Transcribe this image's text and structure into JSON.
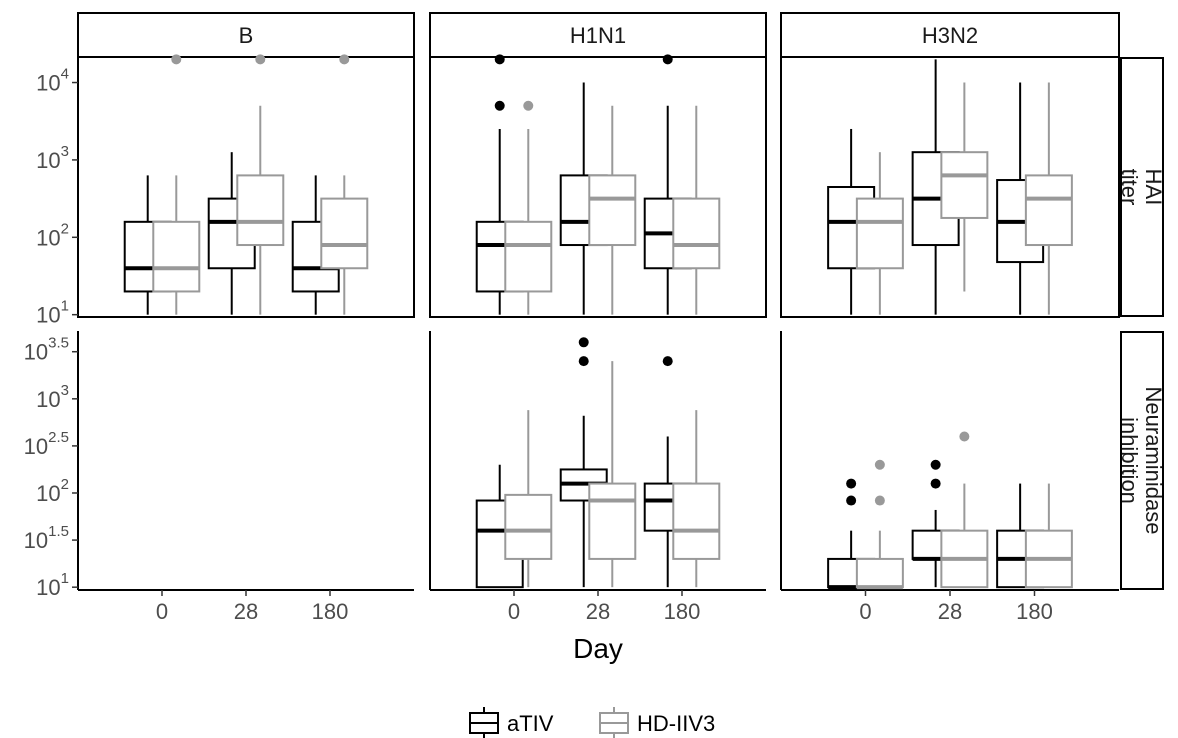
{
  "colors": {
    "aTIV": "#000000",
    "HD-IIV3": "#999999"
  },
  "chart_data": {
    "type": "boxplot",
    "xlabel": "Day",
    "x_categories": [
      "0",
      "28",
      "180"
    ],
    "panel_columns": [
      "B",
      "H1N1",
      "H3N2"
    ],
    "panel_rows": [
      "HAI titer",
      "Neuraminidase inhibition"
    ],
    "legend": {
      "placement": "bottom",
      "entries": [
        "aTIV",
        "HD-IIV3"
      ]
    },
    "grid": false,
    "y_scale": "log10",
    "rows": [
      {
        "label": "HAI titer",
        "ylim_log10": [
          0.97,
          4.33
        ],
        "ticks": [
          {
            "base": "10",
            "exp": "1"
          },
          {
            "base": "10",
            "exp": "2"
          },
          {
            "base": "10",
            "exp": "3"
          },
          {
            "base": "10",
            "exp": "4"
          }
        ]
      },
      {
        "label": "Neuraminidase inhibition",
        "ylim_log10": [
          0.97,
          3.72
        ],
        "ticks": [
          {
            "base": "10",
            "exp": "1"
          },
          {
            "base": "10",
            "exp": "1.5"
          },
          {
            "base": "10",
            "exp": "2"
          },
          {
            "base": "10",
            "exp": "2.5"
          },
          {
            "base": "10",
            "exp": "3"
          },
          {
            "base": "10",
            "exp": "3.5"
          }
        ]
      }
    ],
    "boxes_note": "values are log10(titer): wl=lower whisker, q1, med, q3, wh=upper whisker, out=outliers",
    "boxes": [
      {
        "row": 0,
        "col": 0,
        "day": "0",
        "group": "aTIV",
        "wl": 1.0,
        "q1": 1.3,
        "med": 1.6,
        "q3": 2.2,
        "wh": 2.8,
        "out": []
      },
      {
        "row": 0,
        "col": 0,
        "day": "0",
        "group": "HD-IIV3",
        "wl": 1.0,
        "q1": 1.3,
        "med": 1.6,
        "q3": 2.2,
        "wh": 2.8,
        "out": [
          4.3
        ]
      },
      {
        "row": 0,
        "col": 0,
        "day": "28",
        "group": "aTIV",
        "wl": 1.0,
        "q1": 1.6,
        "med": 2.2,
        "q3": 2.5,
        "wh": 3.1,
        "out": []
      },
      {
        "row": 0,
        "col": 0,
        "day": "28",
        "group": "HD-IIV3",
        "wl": 1.0,
        "q1": 1.9,
        "med": 2.2,
        "q3": 2.8,
        "wh": 3.7,
        "out": [
          4.3
        ]
      },
      {
        "row": 0,
        "col": 0,
        "day": "180",
        "group": "aTIV",
        "wl": 1.0,
        "q1": 1.3,
        "med": 1.6,
        "q3": 2.2,
        "wh": 2.8,
        "out": []
      },
      {
        "row": 0,
        "col": 0,
        "day": "180",
        "group": "HD-IIV3",
        "wl": 1.0,
        "q1": 1.6,
        "med": 1.9,
        "q3": 2.5,
        "wh": 2.8,
        "out": [
          4.3
        ]
      },
      {
        "row": 0,
        "col": 1,
        "day": "0",
        "group": "aTIV",
        "wl": 1.0,
        "q1": 1.3,
        "med": 1.9,
        "q3": 2.2,
        "wh": 3.4,
        "out": [
          3.7,
          4.3
        ]
      },
      {
        "row": 0,
        "col": 1,
        "day": "0",
        "group": "HD-IIV3",
        "wl": 1.0,
        "q1": 1.3,
        "med": 1.9,
        "q3": 2.2,
        "wh": 3.4,
        "out": [
          3.7
        ]
      },
      {
        "row": 0,
        "col": 1,
        "day": "28",
        "group": "aTIV",
        "wl": 1.0,
        "q1": 1.9,
        "med": 2.2,
        "q3": 2.8,
        "wh": 4.0,
        "out": []
      },
      {
        "row": 0,
        "col": 1,
        "day": "28",
        "group": "HD-IIV3",
        "wl": 1.0,
        "q1": 1.9,
        "med": 2.5,
        "q3": 2.8,
        "wh": 3.7,
        "out": []
      },
      {
        "row": 0,
        "col": 1,
        "day": "180",
        "group": "aTIV",
        "wl": 1.0,
        "q1": 1.6,
        "med": 2.05,
        "q3": 2.5,
        "wh": 3.7,
        "out": [
          4.3
        ]
      },
      {
        "row": 0,
        "col": 1,
        "day": "180",
        "group": "HD-IIV3",
        "wl": 1.0,
        "q1": 1.6,
        "med": 1.9,
        "q3": 2.5,
        "wh": 3.7,
        "out": []
      },
      {
        "row": 0,
        "col": 2,
        "day": "0",
        "group": "aTIV",
        "wl": 1.0,
        "q1": 1.6,
        "med": 2.2,
        "q3": 2.65,
        "wh": 3.4,
        "out": []
      },
      {
        "row": 0,
        "col": 2,
        "day": "0",
        "group": "HD-IIV3",
        "wl": 1.0,
        "q1": 1.6,
        "med": 2.2,
        "q3": 2.5,
        "wh": 3.1,
        "out": []
      },
      {
        "row": 0,
        "col": 2,
        "day": "28",
        "group": "aTIV",
        "wl": 1.0,
        "q1": 1.9,
        "med": 2.5,
        "q3": 3.1,
        "wh": 4.3,
        "out": []
      },
      {
        "row": 0,
        "col": 2,
        "day": "28",
        "group": "HD-IIV3",
        "wl": 1.3,
        "q1": 2.25,
        "med": 2.8,
        "q3": 3.1,
        "wh": 4.0,
        "out": []
      },
      {
        "row": 0,
        "col": 2,
        "day": "180",
        "group": "aTIV",
        "wl": 1.0,
        "q1": 1.68,
        "med": 2.2,
        "q3": 2.74,
        "wh": 4.0,
        "out": []
      },
      {
        "row": 0,
        "col": 2,
        "day": "180",
        "group": "HD-IIV3",
        "wl": 1.0,
        "q1": 1.9,
        "med": 2.5,
        "q3": 2.8,
        "wh": 4.0,
        "out": []
      },
      {
        "row": 1,
        "col": 1,
        "day": "0",
        "group": "aTIV",
        "wl": 1.0,
        "q1": 1.0,
        "med": 1.6,
        "q3": 1.92,
        "wh": 2.3,
        "out": []
      },
      {
        "row": 1,
        "col": 1,
        "day": "0",
        "group": "HD-IIV3",
        "wl": 1.0,
        "q1": 1.3,
        "med": 1.6,
        "q3": 1.98,
        "wh": 2.88,
        "out": []
      },
      {
        "row": 1,
        "col": 1,
        "day": "28",
        "group": "aTIV",
        "wl": 1.0,
        "q1": 1.92,
        "med": 2.1,
        "q3": 2.25,
        "wh": 2.82,
        "out": [
          3.4,
          3.6
        ]
      },
      {
        "row": 1,
        "col": 1,
        "day": "28",
        "group": "HD-IIV3",
        "wl": 1.0,
        "q1": 1.3,
        "med": 1.92,
        "q3": 2.1,
        "wh": 3.4,
        "out": []
      },
      {
        "row": 1,
        "col": 1,
        "day": "180",
        "group": "aTIV",
        "wl": 1.0,
        "q1": 1.6,
        "med": 1.92,
        "q3": 2.1,
        "wh": 2.6,
        "out": [
          3.4
        ]
      },
      {
        "row": 1,
        "col": 1,
        "day": "180",
        "group": "HD-IIV3",
        "wl": 1.0,
        "q1": 1.3,
        "med": 1.6,
        "q3": 2.1,
        "wh": 2.88,
        "out": []
      },
      {
        "row": 1,
        "col": 2,
        "day": "0",
        "group": "aTIV",
        "wl": 1.0,
        "q1": 1.0,
        "med": 1.0,
        "q3": 1.3,
        "wh": 1.6,
        "out": [
          1.92,
          2.1
        ]
      },
      {
        "row": 1,
        "col": 2,
        "day": "0",
        "group": "HD-IIV3",
        "wl": 1.0,
        "q1": 1.0,
        "med": 1.0,
        "q3": 1.3,
        "wh": 1.6,
        "out": [
          1.92,
          2.3
        ]
      },
      {
        "row": 1,
        "col": 2,
        "day": "28",
        "group": "aTIV",
        "wl": 1.0,
        "q1": 1.3,
        "med": 1.3,
        "q3": 1.6,
        "wh": 1.82,
        "out": [
          2.1,
          2.3
        ]
      },
      {
        "row": 1,
        "col": 2,
        "day": "28",
        "group": "HD-IIV3",
        "wl": 1.0,
        "q1": 1.0,
        "med": 1.3,
        "q3": 1.6,
        "wh": 2.1,
        "out": [
          2.6
        ]
      },
      {
        "row": 1,
        "col": 2,
        "day": "180",
        "group": "aTIV",
        "wl": 1.0,
        "q1": 1.0,
        "med": 1.3,
        "q3": 1.6,
        "wh": 2.1,
        "out": []
      },
      {
        "row": 1,
        "col": 2,
        "day": "180",
        "group": "HD-IIV3",
        "wl": 1.0,
        "q1": 1.0,
        "med": 1.3,
        "q3": 1.6,
        "wh": 2.1,
        "out": []
      }
    ]
  }
}
